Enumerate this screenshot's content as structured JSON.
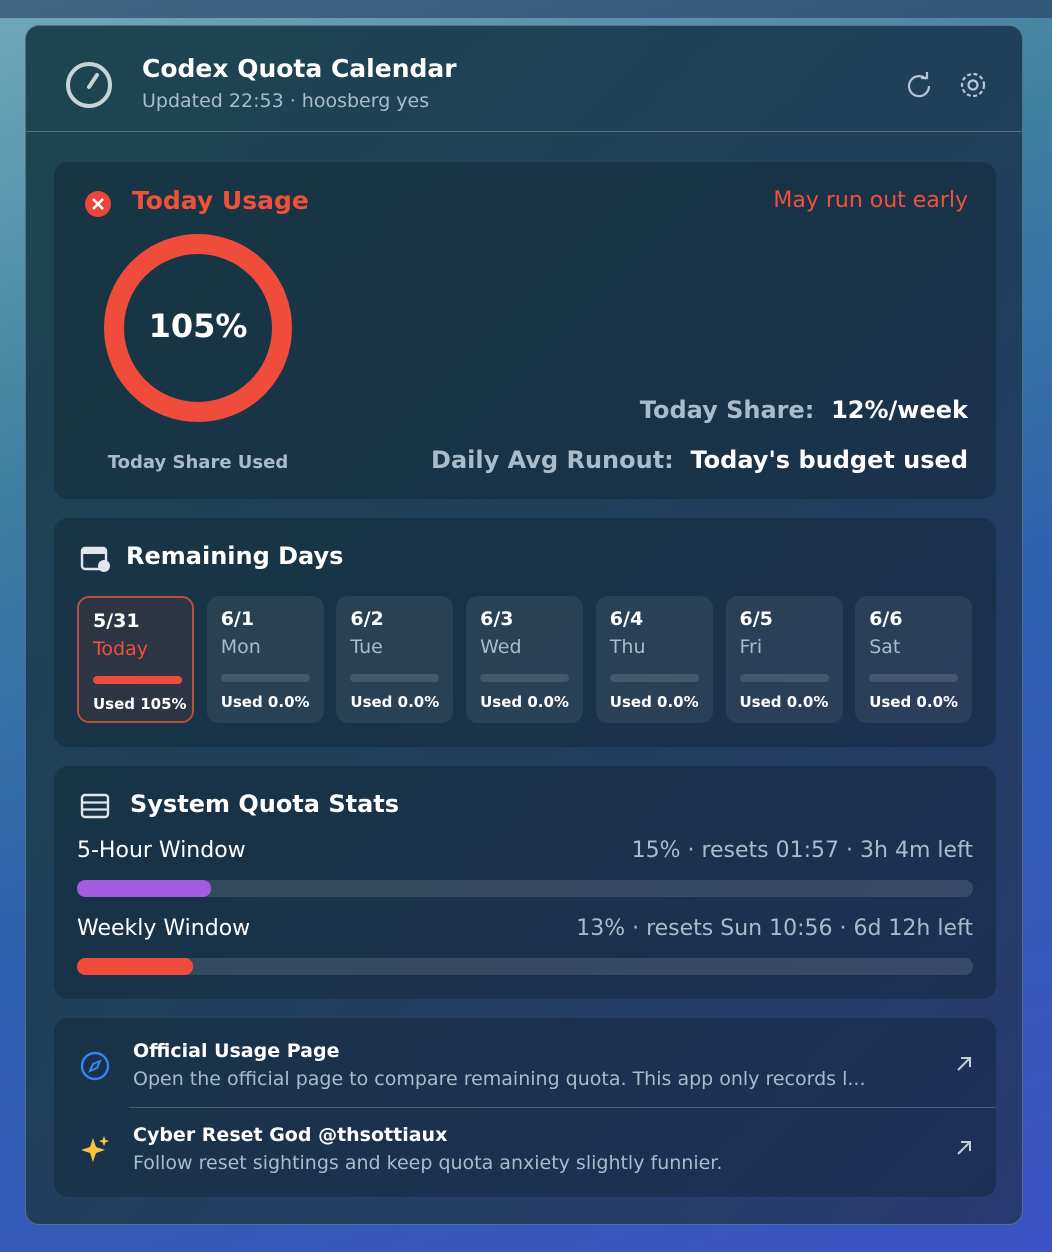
{
  "header": {
    "title": "Codex Quota Calendar",
    "subtitle": "Updated 22:53 · hoosberg yes"
  },
  "today": {
    "title": "Today Usage",
    "status": "May run out early",
    "ring_label": "105%",
    "ring_value": 105,
    "ring_caption": "Today Share Used",
    "share_label": "Today Share:",
    "share_value": "12%/week",
    "runout_label": "Daily Avg Runout:",
    "runout_value": "Today's budget used"
  },
  "remaining": {
    "title": "Remaining Days",
    "days": [
      {
        "date": "5/31",
        "day": "Today",
        "used": "Used 105%",
        "value": 105
      },
      {
        "date": "6/1",
        "day": "Mon",
        "used": "Used 0.0%",
        "value": 0
      },
      {
        "date": "6/2",
        "day": "Tue",
        "used": "Used 0.0%",
        "value": 0
      },
      {
        "date": "6/3",
        "day": "Wed",
        "used": "Used 0.0%",
        "value": 0
      },
      {
        "date": "6/4",
        "day": "Thu",
        "used": "Used 0.0%",
        "value": 0
      },
      {
        "date": "6/5",
        "day": "Fri",
        "used": "Used 0.0%",
        "value": 0
      },
      {
        "date": "6/6",
        "day": "Sat",
        "used": "Used 0.0%",
        "value": 0
      }
    ]
  },
  "stats": {
    "title": "System Quota Stats",
    "windows": [
      {
        "name": "5-Hour Window",
        "detail": "15% · resets 01:57 · 3h 4m left",
        "percent": 15
      },
      {
        "name": "Weekly Window",
        "detail": "13% · resets Sun 10:56 · 6d 12h left",
        "percent": 13
      }
    ]
  },
  "links": [
    {
      "title": "Official Usage Page",
      "description": "Open the official page to compare remaining quota. This app only records l..."
    },
    {
      "title": "Cyber Reset God @thsottiaux",
      "description": "Follow reset sightings and keep quota anxiety slightly funnier."
    }
  ]
}
